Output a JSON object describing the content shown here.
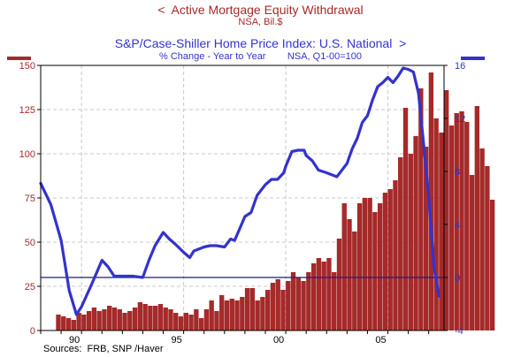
{
  "chart_data": {
    "type": "bar+line",
    "titles": {
      "left_series_title": "<  Active Mortgage Equity Withdrawal",
      "left_series_unit": "NSA, Bil.$",
      "right_series_title": "S&P/Case-Shiller Home Price Index: U.S. National  >",
      "right_series_subtitle": "% Change - Year to Year        NSA, Q1-00=100"
    },
    "source": "Sources:  FRB, SNP /Haver",
    "x_axis": {
      "range": [
        1988.0,
        2007.75
      ],
      "tick_labels": [
        "90",
        "95",
        "00",
        "05"
      ],
      "tick_values": [
        1990,
        1995,
        2000,
        2005
      ]
    },
    "left_axis": {
      "range": [
        0,
        150
      ],
      "ticks": [
        0,
        25,
        50,
        75,
        100,
        125,
        150
      ],
      "color": "#a52a2a"
    },
    "right_axis": {
      "range": [
        -4,
        16
      ],
      "ticks": [
        -4,
        0,
        4,
        8,
        12,
        16
      ],
      "color": "#3333cc"
    },
    "reference_line": {
      "axis": "right",
      "value": 0
    },
    "grid": true,
    "series": [
      {
        "type": "bar",
        "axis": "left",
        "color": "#a52a2a",
        "start": 1988.75,
        "step": 0.25,
        "values": [
          9,
          8,
          7,
          6,
          10,
          9,
          11,
          13,
          11,
          12,
          14,
          13,
          12,
          10,
          11,
          13,
          16,
          15,
          14,
          14,
          15,
          13,
          12,
          10,
          8,
          10,
          9,
          12,
          7,
          12,
          17,
          11,
          20,
          17,
          18,
          17,
          19,
          24,
          24,
          17,
          19,
          23,
          27,
          29,
          23,
          28,
          33,
          30,
          28,
          33,
          38,
          41,
          39,
          41,
          33,
          52,
          72,
          63,
          56,
          72,
          75,
          75,
          67,
          72,
          78,
          80,
          85,
          98,
          126,
          100,
          110,
          137,
          104,
          146,
          120,
          112,
          136,
          116,
          123,
          124,
          118,
          88,
          127,
          103,
          93,
          74
        ]
      },
      {
        "type": "line",
        "axis": "right",
        "color": "#3333cc",
        "x": [
          1988.0,
          1988.5,
          1989.0,
          1989.4,
          1989.75,
          1990.0,
          1990.5,
          1991.0,
          1991.3,
          1991.6,
          1992.0,
          1992.5,
          1993.0,
          1993.3,
          1993.6,
          1994.0,
          1994.3,
          1994.6,
          1995.0,
          1995.3,
          1995.5,
          1996.0,
          1996.3,
          1996.6,
          1997.0,
          1997.3,
          1997.5,
          1998.0,
          1998.3,
          1998.6,
          1999.0,
          1999.3,
          1999.6,
          1999.9,
          2000.0,
          2000.3,
          2000.6,
          2000.9,
          2001.0,
          2001.3,
          2001.6,
          2002.0,
          2002.5,
          2002.75,
          2003.0,
          2003.25,
          2003.5,
          2003.75,
          2004.0,
          2004.25,
          2004.5,
          2004.75,
          2005.0,
          2005.25,
          2005.5,
          2005.75,
          2006.0,
          2006.25,
          2006.5,
          2006.75,
          2007.0,
          2007.25,
          2007.5
        ],
        "y": [
          7.1,
          5.5,
          2.8,
          -1.0,
          -2.8,
          -2.2,
          -0.5,
          1.3,
          0.8,
          0.1,
          0.1,
          0.1,
          0.0,
          1.3,
          2.4,
          3.4,
          2.9,
          2.5,
          1.9,
          1.5,
          2.0,
          2.3,
          2.4,
          2.4,
          2.3,
          2.9,
          2.8,
          4.6,
          4.9,
          6.2,
          7.0,
          7.4,
          7.4,
          7.9,
          8.4,
          9.5,
          9.6,
          9.6,
          9.2,
          8.8,
          8.1,
          7.9,
          7.6,
          8.1,
          8.6,
          9.7,
          10.5,
          11.7,
          12.2,
          13.4,
          14.4,
          14.7,
          15.1,
          14.7,
          15.2,
          15.8,
          15.7,
          15.5,
          13.9,
          10.1,
          6.1,
          0.8,
          -1.4
        ]
      }
    ]
  }
}
